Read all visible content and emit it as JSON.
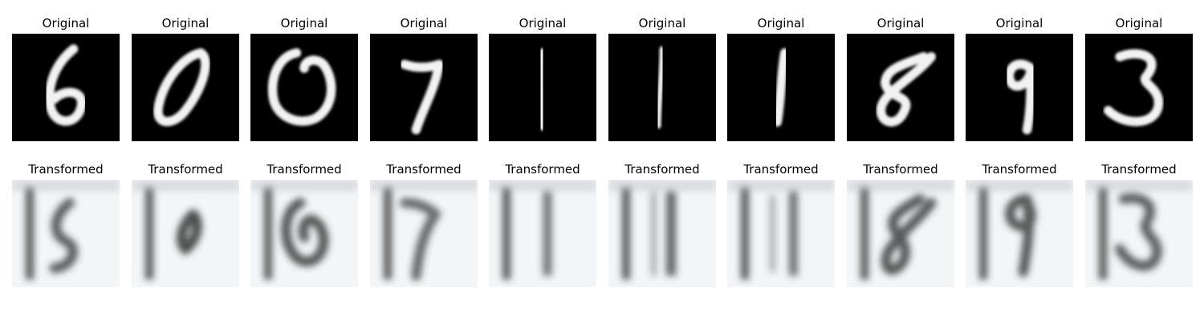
{
  "row_titles": {
    "original": "Original",
    "transformed": "Transformed"
  },
  "digits": [
    "6",
    "0",
    "0",
    "7",
    "1",
    "1",
    "1",
    "8",
    "9",
    "3"
  ],
  "colors": {
    "original_background": "#000000",
    "original_stroke": "#f2f2f2",
    "transformed_background": "#f3f5f7",
    "transformed_stroke": "#2e2e2e"
  }
}
